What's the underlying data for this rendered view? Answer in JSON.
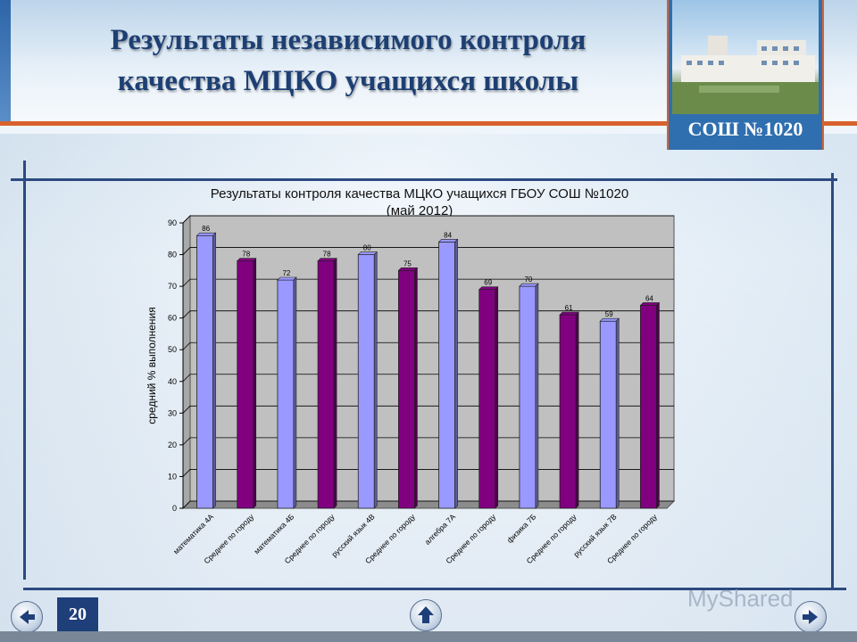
{
  "header": {
    "title_line1": "Результаты независимого контроля",
    "title_line2": "качества МЦКО учащихся школы",
    "school_label": "СОШ №1020"
  },
  "footer": {
    "page_number": "20",
    "watermark": "MyShared"
  },
  "colors": {
    "series_a": "#9999ff",
    "series_b": "#800080",
    "plot_bg": "#c0c0c0",
    "accent": "#d8622e",
    "frame": "#2c4a80"
  },
  "chart_data": {
    "type": "bar",
    "title_line1": "Результаты контроля качества МЦКО учащихся ГБОУ СОШ №1020",
    "title_line2": "(май 2012)",
    "ylabel": "средний % выполнения",
    "xlabel": "",
    "ylim": [
      0,
      90
    ],
    "yticks": [
      0,
      10,
      20,
      30,
      40,
      50,
      60,
      70,
      80,
      90
    ],
    "grid": true,
    "categories": [
      "математика 4А",
      "Среднее по городу",
      "математика 4Б",
      "Среднее по городу",
      "русский язык 4В",
      "Среднее по городу",
      "алгебра 7А",
      "Среднее по городу",
      "физика 7Б",
      "Среднее по городу",
      "русский язык 7В",
      "Среднее по городу"
    ],
    "values": [
      86,
      78,
      72,
      78,
      80,
      75,
      84,
      69,
      70,
      61,
      59,
      64
    ],
    "bar_colors": [
      "#9999ff",
      "#800080",
      "#9999ff",
      "#800080",
      "#9999ff",
      "#800080",
      "#9999ff",
      "#800080",
      "#9999ff",
      "#800080",
      "#9999ff",
      "#800080"
    ]
  }
}
